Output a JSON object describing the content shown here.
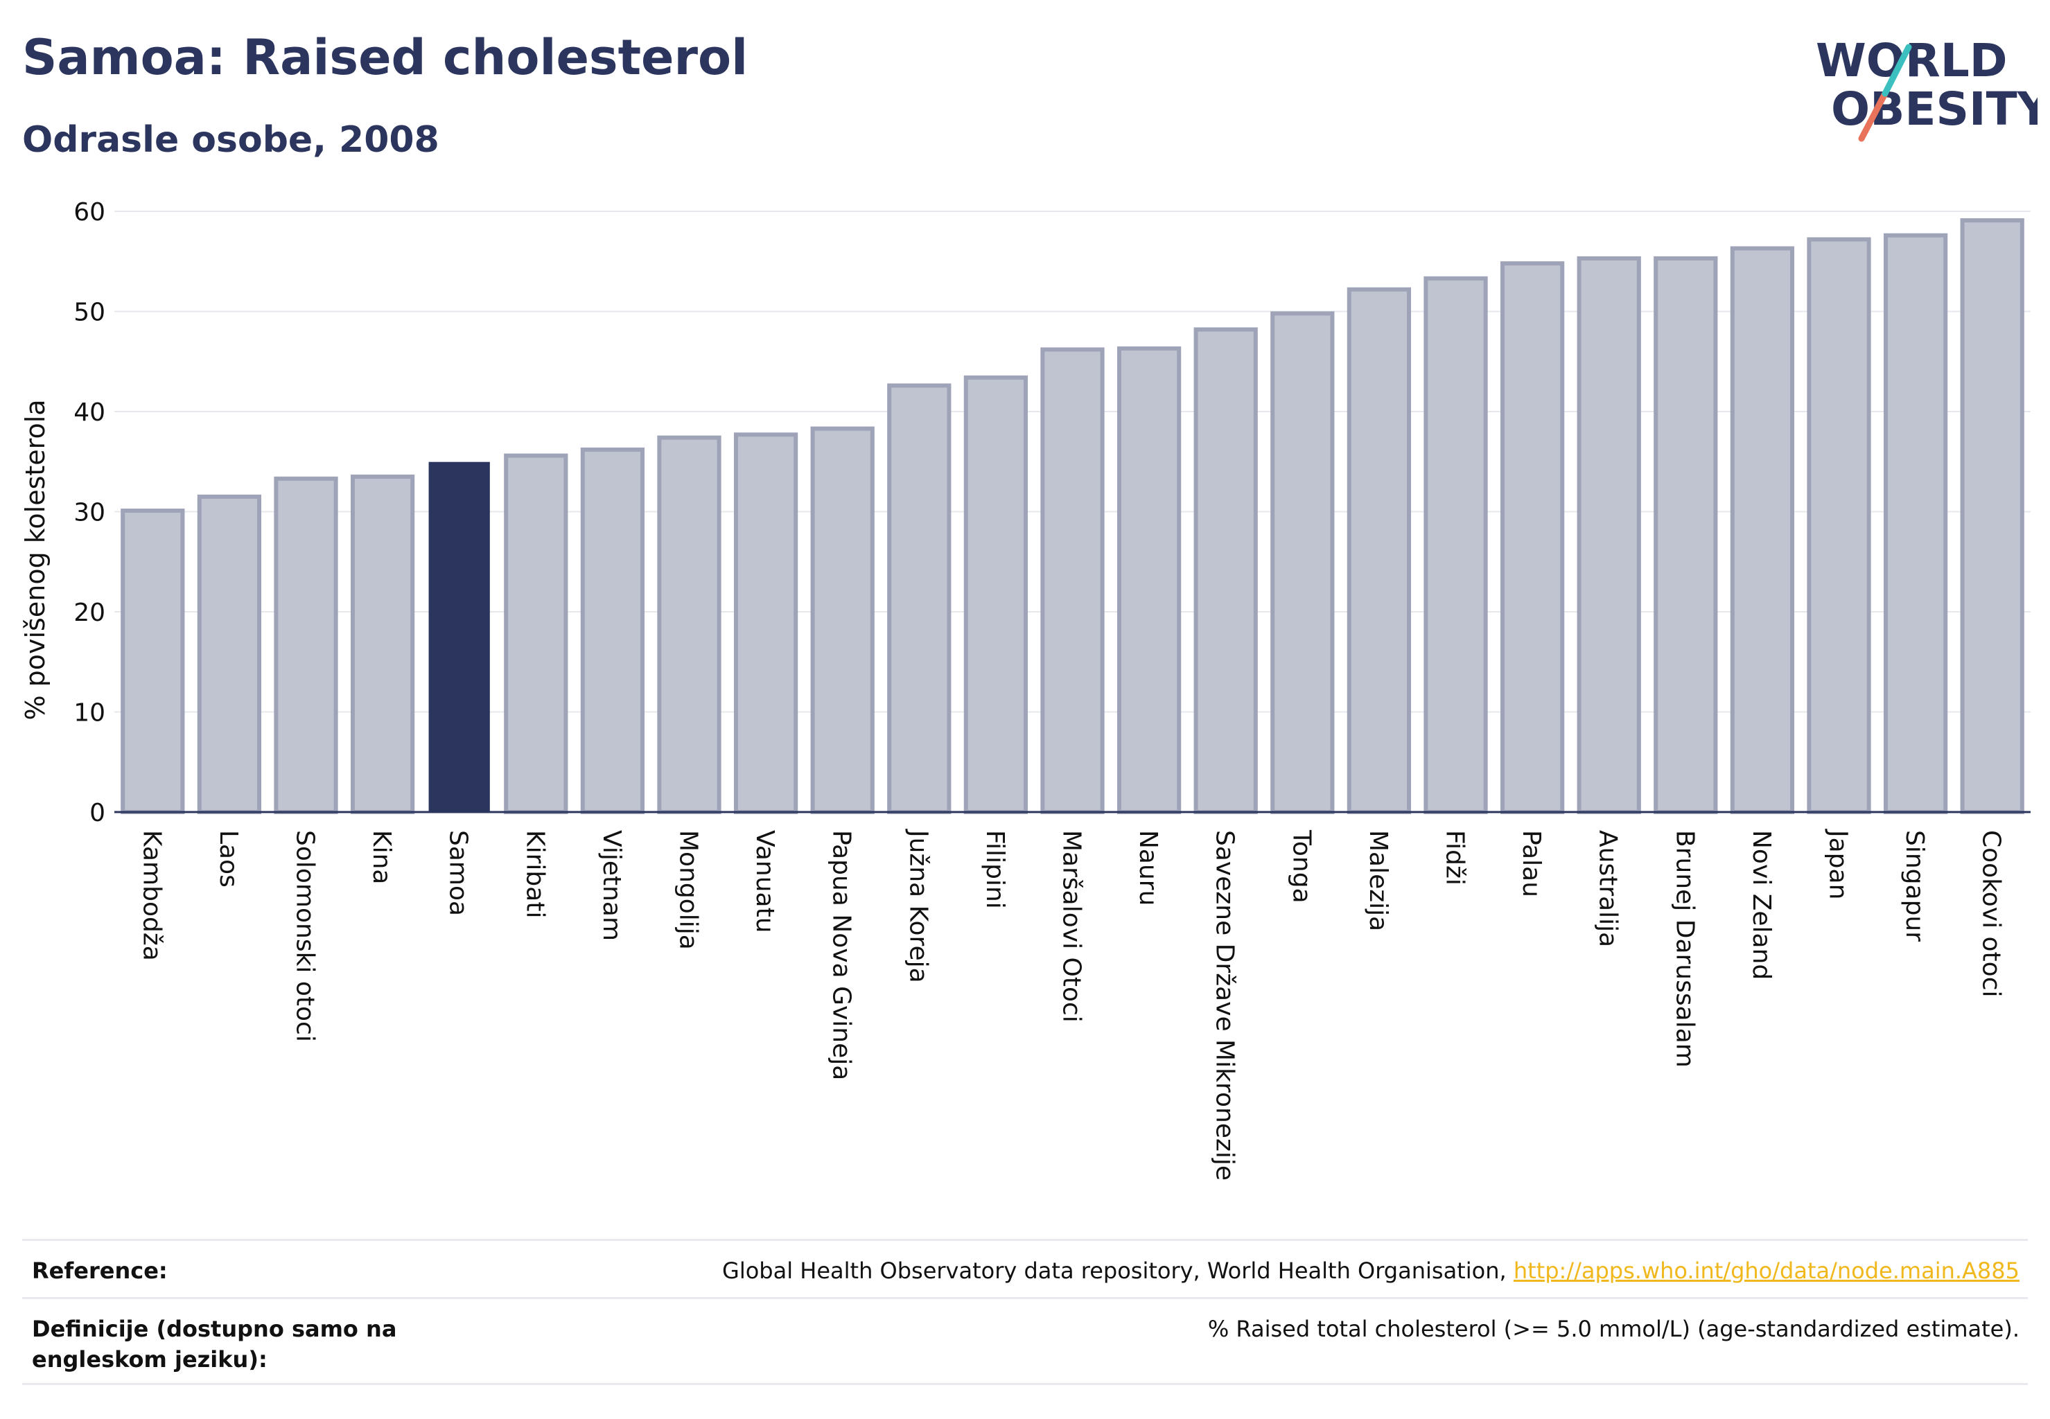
{
  "header": {
    "title": "Samoa: Raised cholesterol",
    "subtitle": "Odrasle osobe, 2008"
  },
  "logo": {
    "line1": "WORLD",
    "line2": "OBESITY"
  },
  "colors": {
    "highlight_bar": "#2b355e",
    "bar_fill": "#c0c3d0",
    "bar_stroke": "#9ea3b8",
    "grid": "#e6e8ee",
    "text": "#2b355e",
    "link": "#f0b81c",
    "logo_teal": "#3cbfbf",
    "logo_coral": "#e8735a"
  },
  "chart_data": {
    "type": "bar",
    "ylabel": "% povišenog kolesterola",
    "xlabel": "",
    "ylim": [
      0,
      60
    ],
    "yticks": [
      0,
      10,
      20,
      30,
      40,
      50,
      60
    ],
    "grid": true,
    "highlight": "Samoa",
    "categories": [
      "Kambodža",
      "Laos",
      "Solomonski otoci",
      "Kina",
      "Samoa",
      "Kiribati",
      "Vijetnam",
      "Mongolija",
      "Vanuatu",
      "Papua Nova Gvineja",
      "Južna Koreja",
      "Filipini",
      "Maršalovi Otoci",
      "Nauru",
      "Savezne Države Mikronezije",
      "Tonga",
      "Malezija",
      "Fidži",
      "Palau",
      "Australija",
      "Brunej Darussalam",
      "Novi Zeland",
      "Japan",
      "Singapur",
      "Cookovi otoci"
    ],
    "values": [
      30.1,
      31.5,
      33.3,
      33.5,
      34.9,
      35.6,
      36.2,
      37.4,
      37.7,
      38.3,
      42.6,
      43.4,
      46.2,
      46.3,
      48.2,
      49.8,
      52.2,
      53.3,
      54.8,
      55.3,
      55.3,
      56.3,
      57.2,
      57.6,
      59.1
    ]
  },
  "footer": {
    "reference_label": "Reference:",
    "reference_text": "Global Health Observatory data repository, World Health Organisation, ",
    "reference_link": "http://apps.who.int/gho/data/node.main.A885",
    "definitions_label": "Definicije (dostupno samo na engleskom jeziku):",
    "definitions_text": "% Raised total cholesterol (>= 5.0 mmol/L) (age-standardized estimate)."
  }
}
